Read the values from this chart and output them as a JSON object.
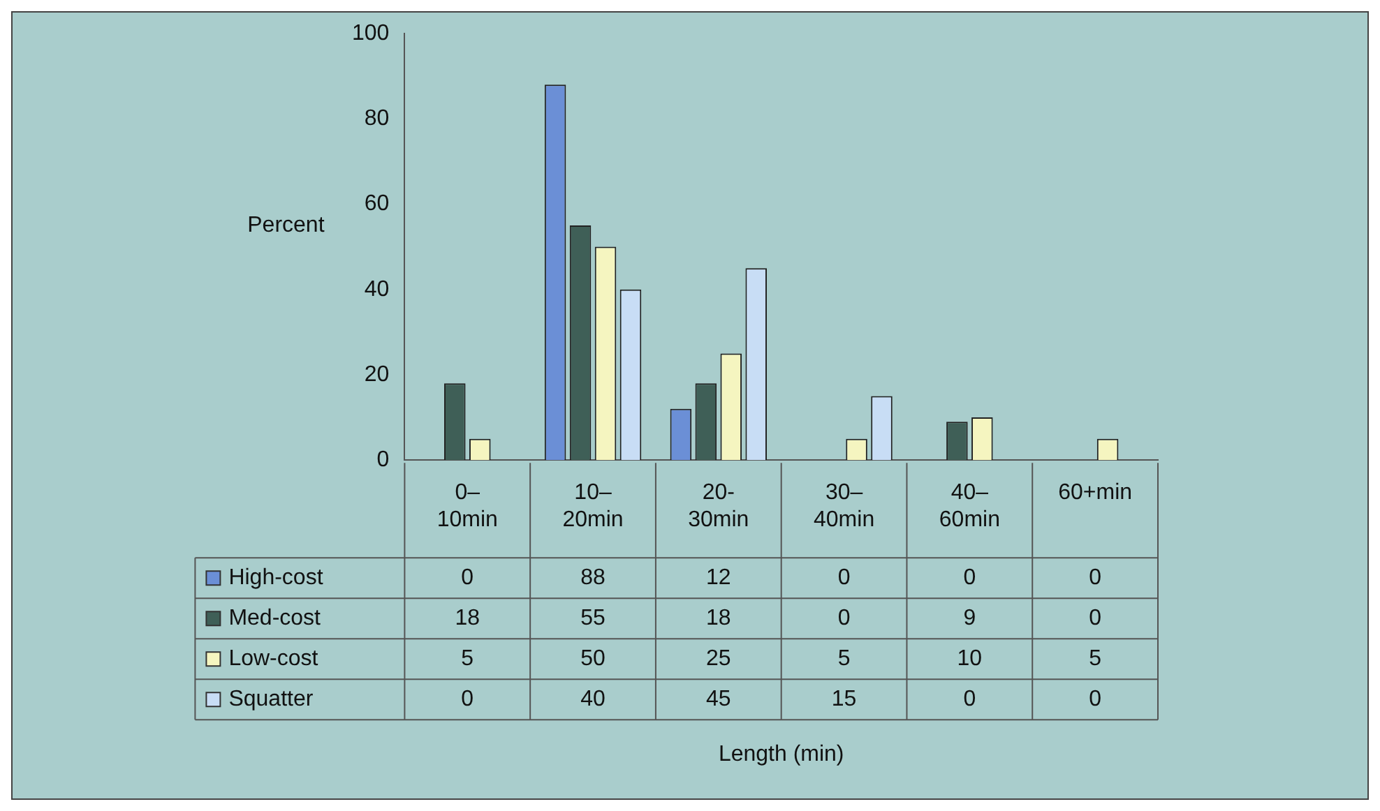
{
  "chart_data": {
    "type": "bar",
    "ylabel": "Percent",
    "annotations": [
      "Length (min)"
    ],
    "categories": [
      "0–10min",
      "10–20min",
      "20-30min",
      "30–40min",
      "40–60min",
      "60+min"
    ],
    "series": [
      {
        "name": "High-cost",
        "color": "#6b8fd6",
        "values": [
          0,
          88,
          12,
          0,
          0,
          0
        ]
      },
      {
        "name": "Med-cost",
        "color": "#3f5f57",
        "values": [
          18,
          55,
          18,
          0,
          9,
          0
        ]
      },
      {
        "name": "Low-cost",
        "color": "#f5f5c0",
        "values": [
          5,
          50,
          25,
          5,
          10,
          5
        ]
      },
      {
        "name": "Squatter",
        "color": "#c8ddf5",
        "values": [
          0,
          40,
          45,
          15,
          0,
          0
        ]
      }
    ],
    "ylim": [
      0,
      100
    ],
    "yticks": [
      0,
      20,
      40,
      60,
      80,
      100
    ],
    "grid": false,
    "legend": "bottom",
    "data_labels": true
  }
}
